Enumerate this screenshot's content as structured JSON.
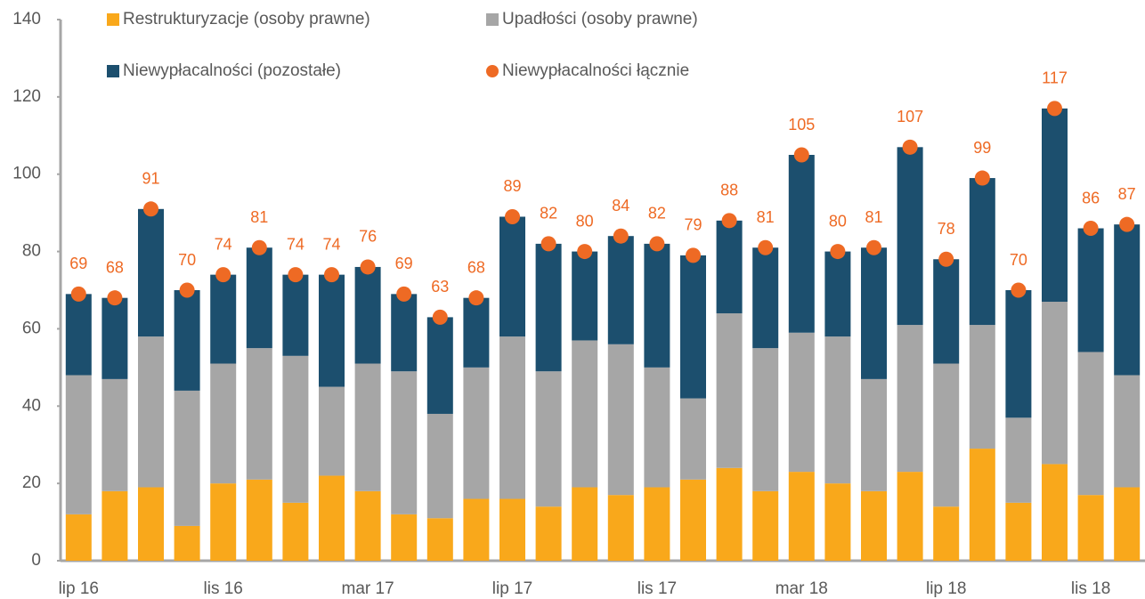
{
  "chart_data": {
    "type": "bar",
    "stacked": true,
    "categories": [
      "lip 16",
      null,
      null,
      null,
      "lis 16",
      null,
      null,
      null,
      "mar 17",
      null,
      null,
      null,
      "lip 17",
      null,
      null,
      null,
      "lis 17",
      null,
      null,
      null,
      "mar 18",
      null,
      null,
      null,
      "lip 18",
      null,
      null,
      null,
      "lis 18",
      null
    ],
    "series": [
      {
        "name": "Restrukturyzacje (osoby prawne)",
        "color": "#f9a81b",
        "values": [
          12,
          18,
          19,
          9,
          20,
          21,
          15,
          22,
          18,
          12,
          11,
          16,
          16,
          14,
          19,
          17,
          19,
          21,
          24,
          18,
          23,
          20,
          18,
          23,
          14,
          29,
          15,
          25,
          17,
          19
        ]
      },
      {
        "name": "Upadłości (osoby prawne)",
        "color": "#a6a6a6",
        "values": [
          36,
          29,
          39,
          35,
          31,
          34,
          38,
          23,
          33,
          37,
          27,
          34,
          42,
          35,
          38,
          39,
          31,
          21,
          40,
          37,
          36,
          38,
          29,
          38,
          37,
          32,
          22,
          42,
          37,
          29
        ]
      },
      {
        "name": "Niewypłacalności (pozostałe)",
        "color": "#1c4f6e",
        "values": [
          21,
          21,
          33,
          26,
          23,
          26,
          21,
          29,
          25,
          20,
          25,
          18,
          31,
          33,
          23,
          28,
          32,
          37,
          24,
          26,
          46,
          22,
          34,
          46,
          27,
          38,
          33,
          50,
          32,
          39
        ]
      },
      {
        "name": "Niewypłacalności łącznie",
        "color": "#ee6a24",
        "type": "scatter",
        "values": [
          69,
          68,
          91,
          70,
          74,
          81,
          74,
          74,
          76,
          69,
          63,
          68,
          89,
          82,
          80,
          84,
          82,
          79,
          88,
          81,
          105,
          80,
          81,
          107,
          78,
          99,
          70,
          117,
          86,
          87
        ]
      }
    ],
    "ylim": [
      0,
      140
    ],
    "yticks": [
      0,
      20,
      40,
      60,
      80,
      100,
      120,
      140
    ],
    "grid": false
  }
}
